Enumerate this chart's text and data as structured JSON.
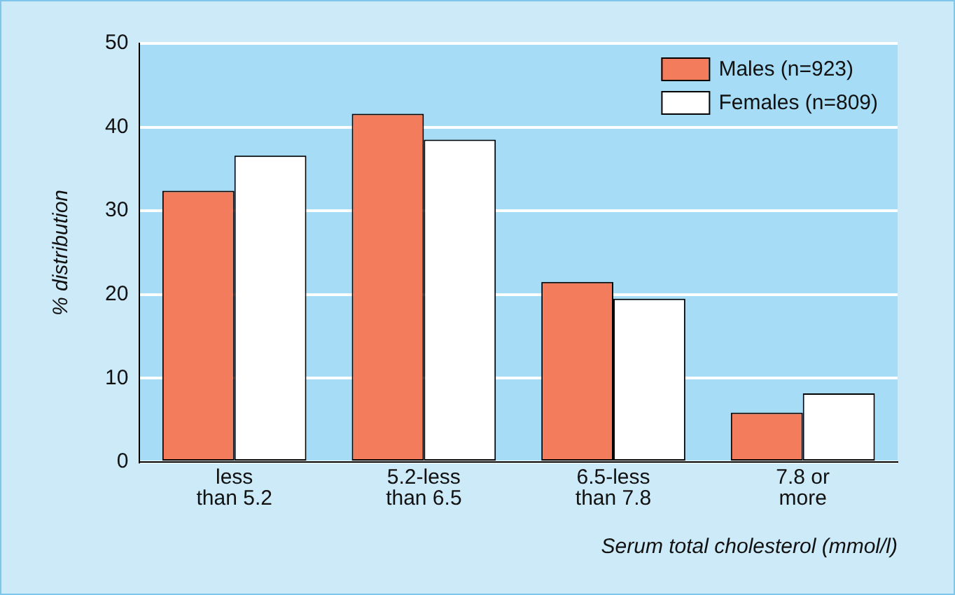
{
  "chart_data": {
    "type": "bar",
    "xlabel": "Serum total cholesterol (mmol/l)",
    "ylabel": "% distribution",
    "categories": [
      "less than 5.2",
      "5.2-less than 6.5",
      "6.5-less than 7.8",
      "7.8 or more"
    ],
    "series": [
      {
        "name": "Males (n=923)",
        "color": "#f27c5c",
        "values": [
          32.4,
          41.6,
          21.5,
          5.9
        ]
      },
      {
        "name": "Females (n=809)",
        "color": "#ffffff",
        "values": [
          36.6,
          38.5,
          19.5,
          8.2
        ]
      }
    ],
    "ylim": [
      0,
      50
    ],
    "yticks": [
      0,
      10,
      20,
      30,
      40,
      50
    ],
    "grid": "y",
    "legend": "top right"
  }
}
